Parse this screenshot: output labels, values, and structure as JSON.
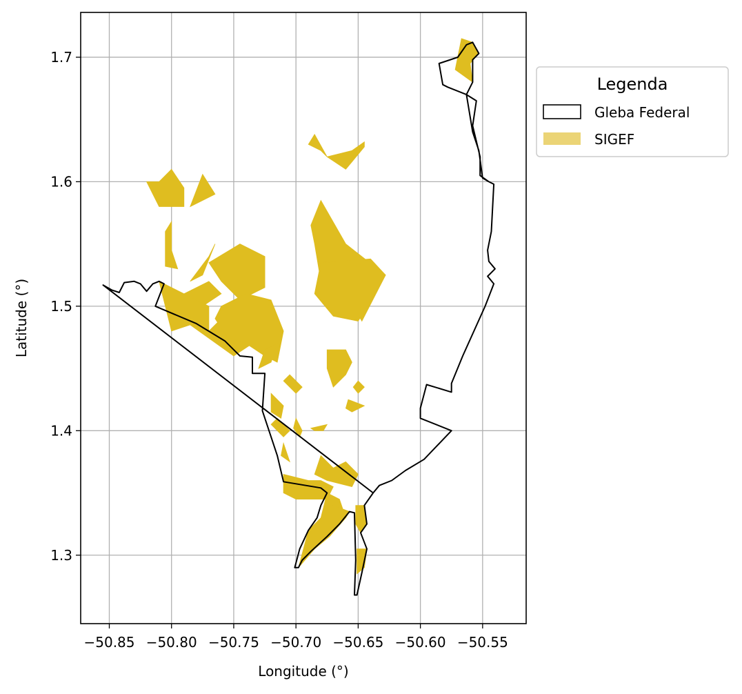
{
  "map": {
    "xlabel": "Longitude (°)",
    "ylabel": "Latitude (°)",
    "xlim": [
      -50.873,
      -50.515
    ],
    "ylim": [
      1.245,
      1.736
    ],
    "x_ticks": [
      -50.85,
      -50.8,
      -50.75,
      -50.7,
      -50.65,
      -50.6,
      -50.55
    ],
    "x_tick_labels": [
      "−50.85",
      "−50.80",
      "−50.75",
      "−50.70",
      "−50.65",
      "−50.60",
      "−50.55"
    ],
    "y_ticks": [
      1.3,
      1.4,
      1.5,
      1.6,
      1.7
    ],
    "y_tick_labels": [
      "1.3",
      "1.4",
      "1.5",
      "1.6",
      "1.7"
    ],
    "grid": true,
    "legend": {
      "title": "Legenda",
      "placement": "outside-upper-right",
      "items": [
        {
          "label": "Gleba Federal",
          "style": "outline"
        },
        {
          "label": "SIGEF",
          "style": "fill"
        }
      ]
    },
    "colors": {
      "gleba_outline": "#000000",
      "sigef_fill": "#dfbd20",
      "legend_sigef_swatch": "#ebd476",
      "grid": "#b0b0b0"
    },
    "gleba_federal": [
      [
        -50.855,
        1.517
      ],
      [
        -50.848,
        1.513
      ],
      [
        -50.842,
        1.511
      ],
      [
        -50.838,
        1.519
      ],
      [
        -50.83,
        1.52
      ],
      [
        -50.825,
        1.518
      ],
      [
        -50.82,
        1.512
      ],
      [
        -50.815,
        1.518
      ],
      [
        -50.81,
        1.52
      ],
      [
        -50.806,
        1.518
      ],
      [
        -50.813,
        1.5
      ],
      [
        -50.78,
        1.486
      ],
      [
        -50.757,
        1.472
      ],
      [
        -50.745,
        1.46
      ],
      [
        -50.735,
        1.459
      ],
      [
        -50.735,
        1.446
      ],
      [
        -50.725,
        1.446
      ],
      [
        -50.727,
        1.416
      ],
      [
        -50.715,
        1.38
      ],
      [
        -50.71,
        1.359
      ],
      [
        -50.68,
        1.354
      ],
      [
        -50.675,
        1.35
      ],
      [
        -50.68,
        1.34
      ],
      [
        -50.683,
        1.33
      ],
      [
        -50.69,
        1.32
      ],
      [
        -50.697,
        1.305
      ],
      [
        -50.701,
        1.29
      ],
      [
        -50.698,
        1.29
      ],
      [
        -50.695,
        1.296
      ],
      [
        -50.688,
        1.303
      ],
      [
        -50.675,
        1.315
      ],
      [
        -50.665,
        1.325
      ],
      [
        -50.657,
        1.335
      ],
      [
        -50.653,
        1.334
      ],
      [
        -50.652,
        1.296
      ],
      [
        -50.653,
        1.268
      ],
      [
        -50.651,
        1.268
      ],
      [
        -50.647,
        1.286
      ],
      [
        -50.643,
        1.305
      ],
      [
        -50.648,
        1.318
      ],
      [
        -50.643,
        1.325
      ],
      [
        -50.645,
        1.34
      ],
      [
        -50.638,
        1.35
      ],
      [
        -50.633,
        1.356
      ],
      [
        -50.623,
        1.36
      ],
      [
        -50.612,
        1.368
      ],
      [
        -50.597,
        1.377
      ],
      [
        -50.575,
        1.4
      ],
      [
        -50.6,
        1.41
      ],
      [
        -50.6,
        1.418
      ],
      [
        -50.595,
        1.437
      ],
      [
        -50.575,
        1.431
      ],
      [
        -50.575,
        1.438
      ],
      [
        -50.566,
        1.46
      ],
      [
        -50.548,
        1.5
      ],
      [
        -50.541,
        1.518
      ],
      [
        -50.546,
        1.524
      ],
      [
        -50.54,
        1.53
      ],
      [
        -50.545,
        1.536
      ],
      [
        -50.546,
        1.545
      ],
      [
        -50.543,
        1.56
      ],
      [
        -50.541,
        1.598
      ],
      [
        -50.545,
        1.6
      ],
      [
        -50.55,
        1.603
      ],
      [
        -50.553,
        1.625
      ],
      [
        -50.558,
        1.64
      ],
      [
        -50.563,
        1.67
      ],
      [
        -50.578,
        1.676
      ],
      [
        -50.582,
        1.678
      ],
      [
        -50.585,
        1.695
      ],
      [
        -50.57,
        1.7
      ],
      [
        -50.563,
        1.71
      ],
      [
        -50.558,
        1.712
      ],
      [
        -50.553,
        1.703
      ],
      [
        -50.558,
        1.698
      ],
      [
        -50.558,
        1.68
      ],
      [
        -50.563,
        1.67
      ],
      [
        -50.555,
        1.665
      ],
      [
        -50.558,
        1.645
      ],
      [
        -50.552,
        1.62
      ],
      [
        -50.552,
        1.605
      ],
      [
        -50.545,
        1.6
      ],
      [
        -50.541,
        1.598
      ],
      [
        -50.543,
        1.56
      ],
      [
        -50.546,
        1.545
      ],
      [
        -50.545,
        1.536
      ],
      [
        -50.54,
        1.53
      ],
      [
        -50.546,
        1.524
      ],
      [
        -50.541,
        1.518
      ],
      [
        -50.548,
        1.5
      ],
      [
        -50.566,
        1.46
      ],
      [
        -50.575,
        1.438
      ],
      [
        -50.575,
        1.431
      ],
      [
        -50.595,
        1.437
      ],
      [
        -50.6,
        1.418
      ],
      [
        -50.6,
        1.41
      ],
      [
        -50.575,
        1.4
      ],
      [
        -50.597,
        1.377
      ],
      [
        -50.612,
        1.368
      ],
      [
        -50.623,
        1.36
      ],
      [
        -50.633,
        1.356
      ],
      [
        -50.638,
        1.35
      ]
    ],
    "sigef_parcels": [
      [
        [
          -50.567,
          1.715
        ],
        [
          -50.558,
          1.712
        ],
        [
          -50.553,
          1.703
        ],
        [
          -50.56,
          1.695
        ],
        [
          -50.558,
          1.68
        ],
        [
          -50.572,
          1.69
        ]
      ],
      [
        [
          -50.69,
          1.63
        ],
        [
          -50.68,
          1.625
        ],
        [
          -50.675,
          1.62
        ],
        [
          -50.66,
          1.61
        ],
        [
          -50.645,
          1.628
        ],
        [
          -50.645,
          1.632
        ],
        [
          -50.655,
          1.625
        ],
        [
          -50.675,
          1.62
        ],
        [
          -50.685,
          1.638
        ]
      ],
      [
        [
          -50.81,
          1.6
        ],
        [
          -50.8,
          1.61
        ],
        [
          -50.79,
          1.595
        ],
        [
          -50.79,
          1.58
        ],
        [
          -50.81,
          1.58
        ],
        [
          -50.82,
          1.6
        ]
      ],
      [
        [
          -50.785,
          1.58
        ],
        [
          -50.775,
          1.606
        ],
        [
          -50.765,
          1.59
        ]
      ],
      [
        [
          -50.8,
          1.568
        ],
        [
          -50.8,
          1.545
        ],
        [
          -50.795,
          1.53
        ],
        [
          -50.805,
          1.532
        ],
        [
          -50.805,
          1.56
        ]
      ],
      [
        [
          -50.68,
          1.585
        ],
        [
          -50.66,
          1.55
        ],
        [
          -50.628,
          1.525
        ],
        [
          -50.647,
          1.488
        ],
        [
          -50.66,
          1.51
        ],
        [
          -50.68,
          1.52
        ],
        [
          -50.685,
          1.55
        ],
        [
          -50.688,
          1.565
        ]
      ],
      [
        [
          -50.68,
          1.535
        ],
        [
          -50.64,
          1.538
        ],
        [
          -50.628,
          1.525
        ],
        [
          -50.65,
          1.488
        ],
        [
          -50.67,
          1.492
        ],
        [
          -50.685,
          1.51
        ]
      ],
      [
        [
          -50.745,
          1.55
        ],
        [
          -50.725,
          1.54
        ],
        [
          -50.725,
          1.515
        ],
        [
          -50.745,
          1.505
        ],
        [
          -50.76,
          1.52
        ],
        [
          -50.77,
          1.535
        ]
      ],
      [
        [
          -50.765,
          1.55
        ],
        [
          -50.775,
          1.525
        ],
        [
          -50.785,
          1.52
        ],
        [
          -50.77,
          1.54
        ]
      ],
      [
        [
          -50.79,
          1.51
        ],
        [
          -50.77,
          1.52
        ],
        [
          -50.76,
          1.51
        ],
        [
          -50.775,
          1.5
        ]
      ],
      [
        [
          -50.81,
          1.52
        ],
        [
          -50.8,
          1.48
        ],
        [
          -50.785,
          1.485
        ],
        [
          -50.75,
          1.46
        ],
        [
          -50.735,
          1.47
        ],
        [
          -50.745,
          1.485
        ],
        [
          -50.76,
          1.49
        ],
        [
          -50.77,
          1.48
        ],
        [
          -50.77,
          1.5
        ]
      ],
      [
        [
          -50.76,
          1.5
        ],
        [
          -50.74,
          1.51
        ],
        [
          -50.72,
          1.505
        ],
        [
          -50.71,
          1.48
        ],
        [
          -50.715,
          1.455
        ],
        [
          -50.725,
          1.46
        ],
        [
          -50.74,
          1.47
        ],
        [
          -50.755,
          1.475
        ],
        [
          -50.765,
          1.49
        ]
      ],
      [
        [
          -50.725,
          1.465
        ],
        [
          -50.73,
          1.45
        ],
        [
          -50.72,
          1.455
        ],
        [
          -50.715,
          1.47
        ]
      ],
      [
        [
          -50.705,
          1.445
        ],
        [
          -50.695,
          1.435
        ],
        [
          -50.7,
          1.43
        ],
        [
          -50.71,
          1.44
        ]
      ],
      [
        [
          -50.72,
          1.43
        ],
        [
          -50.71,
          1.42
        ],
        [
          -50.712,
          1.41
        ],
        [
          -50.72,
          1.415
        ]
      ],
      [
        [
          -50.675,
          1.465
        ],
        [
          -50.66,
          1.465
        ],
        [
          -50.655,
          1.455
        ],
        [
          -50.66,
          1.445
        ],
        [
          -50.67,
          1.435
        ],
        [
          -50.675,
          1.45
        ]
      ],
      [
        [
          -50.65,
          1.44
        ],
        [
          -50.645,
          1.435
        ],
        [
          -50.65,
          1.43
        ],
        [
          -50.654,
          1.435
        ]
      ],
      [
        [
          -50.658,
          1.425
        ],
        [
          -50.645,
          1.42
        ],
        [
          -50.655,
          1.415
        ],
        [
          -50.66,
          1.418
        ]
      ],
      [
        [
          -50.715,
          1.41
        ],
        [
          -50.705,
          1.4
        ],
        [
          -50.71,
          1.395
        ],
        [
          -50.72,
          1.405
        ]
      ],
      [
        [
          -50.7,
          1.41
        ],
        [
          -50.695,
          1.4
        ],
        [
          -50.697,
          1.395
        ],
        [
          -50.702,
          1.402
        ]
      ],
      [
        [
          -50.685,
          1.4
        ],
        [
          -50.678,
          1.4
        ],
        [
          -50.675,
          1.405
        ],
        [
          -50.688,
          1.402
        ]
      ],
      [
        [
          -50.71,
          1.39
        ],
        [
          -50.705,
          1.375
        ],
        [
          -50.712,
          1.38
        ]
      ],
      [
        [
          -50.68,
          1.38
        ],
        [
          -50.67,
          1.37
        ],
        [
          -50.66,
          1.375
        ],
        [
          -50.65,
          1.365
        ],
        [
          -50.655,
          1.355
        ],
        [
          -50.675,
          1.36
        ],
        [
          -50.685,
          1.365
        ]
      ],
      [
        [
          -50.71,
          1.365
        ],
        [
          -50.69,
          1.36
        ],
        [
          -50.68,
          1.36
        ],
        [
          -50.67,
          1.355
        ],
        [
          -50.675,
          1.345
        ],
        [
          -50.7,
          1.345
        ],
        [
          -50.71,
          1.35
        ]
      ],
      [
        [
          -50.675,
          1.35
        ],
        [
          -50.665,
          1.345
        ],
        [
          -50.66,
          1.33
        ],
        [
          -50.67,
          1.325
        ],
        [
          -50.68,
          1.33
        ]
      ],
      [
        [
          -50.698,
          1.29
        ],
        [
          -50.685,
          1.305
        ],
        [
          -50.673,
          1.315
        ],
        [
          -50.66,
          1.33
        ],
        [
          -50.657,
          1.335
        ],
        [
          -50.67,
          1.34
        ],
        [
          -50.68,
          1.33
        ],
        [
          -50.69,
          1.32
        ]
      ],
      [
        [
          -50.652,
          1.34
        ],
        [
          -50.645,
          1.34
        ],
        [
          -50.643,
          1.325
        ],
        [
          -50.648,
          1.318
        ],
        [
          -50.652,
          1.325
        ]
      ],
      [
        [
          -50.651,
          1.305
        ],
        [
          -50.643,
          1.305
        ],
        [
          -50.645,
          1.29
        ],
        [
          -50.651,
          1.285
        ]
      ]
    ]
  }
}
